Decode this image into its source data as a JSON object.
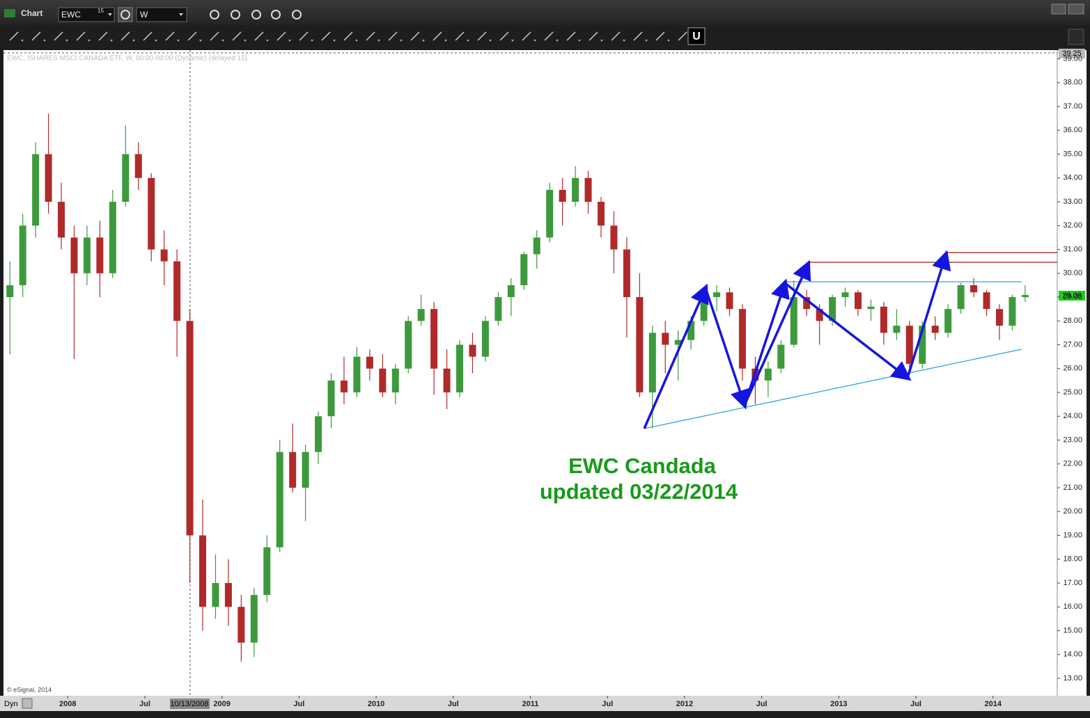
{
  "window": {
    "title": "Chart",
    "symbol": "EWC",
    "symbol_badge": "15",
    "interval": "W",
    "mode": "Dyn"
  },
  "chart_data": {
    "type": "candlestick",
    "title": "EWC, ISHARES MSCI CANADA ETF, W, 00:00-00:00 (Dynamic) (delayed 15)",
    "annotations": [
      "EWC Candada",
      "updated 03/22/2014"
    ],
    "watermark": "© eSignal, 2014",
    "cursor_label": "10/13/2008",
    "x": [
      "2007-08",
      "2007-09",
      "2007-10",
      "2007-11",
      "2007-12",
      "2008-01",
      "2008-02",
      "2008-03",
      "2008-04",
      "2008-05",
      "2008-06",
      "2008-07",
      "2008-08",
      "2008-09",
      "2008-10",
      "2008-11",
      "2008-12",
      "2009-01",
      "2009-02",
      "2009-03",
      "2009-04",
      "2009-05",
      "2009-06",
      "2009-07",
      "2009-08",
      "2009-09",
      "2009-10",
      "2009-11",
      "2009-12",
      "2010-01",
      "2010-02",
      "2010-03",
      "2010-04",
      "2010-05",
      "2010-06",
      "2010-07",
      "2010-08",
      "2010-09",
      "2010-10",
      "2010-11",
      "2010-12",
      "2011-01",
      "2011-02",
      "2011-03",
      "2011-04",
      "2011-05",
      "2011-06",
      "2011-07",
      "2011-08",
      "2011-09",
      "2011-10",
      "2011-11",
      "2011-12",
      "2012-01",
      "2012-02",
      "2012-03",
      "2012-04",
      "2012-05",
      "2012-06",
      "2012-07",
      "2012-08",
      "2012-09",
      "2012-10",
      "2012-11",
      "2012-12",
      "2013-01",
      "2013-02",
      "2013-03",
      "2013-04",
      "2013-05",
      "2013-06",
      "2013-07",
      "2013-08",
      "2013-09",
      "2013-10",
      "2013-11",
      "2013-12",
      "2014-01",
      "2014-02",
      "2014-03"
    ],
    "open": [
      29.0,
      29.5,
      32.0,
      35.0,
      33.0,
      31.5,
      30.0,
      31.5,
      30.0,
      33.0,
      35.0,
      34.0,
      31.0,
      30.5,
      28.0,
      19.0,
      16.0,
      17.0,
      16.0,
      14.5,
      16.5,
      18.5,
      22.5,
      21.0,
      22.5,
      24.0,
      25.5,
      25.0,
      26.5,
      26.0,
      25.0,
      26.0,
      28.0,
      28.5,
      26.0,
      25.0,
      27.0,
      26.5,
      28.0,
      29.0,
      29.5,
      30.8,
      31.5,
      33.5,
      33.0,
      34.0,
      33.0,
      32.0,
      31.0,
      29.0,
      25.0,
      27.5,
      27.0,
      27.2,
      28.0,
      29.0,
      29.2,
      28.5,
      26.0,
      25.5,
      26.0,
      27.0,
      29.0,
      28.5,
      28.0,
      29.0,
      29.2,
      28.5,
      28.6,
      27.5,
      27.8,
      26.2,
      27.8,
      27.5,
      28.5,
      29.5,
      29.2,
      28.5,
      27.8,
      29.0
    ],
    "high": [
      30.5,
      32.5,
      35.5,
      36.7,
      33.8,
      32.0,
      32.0,
      32.2,
      33.5,
      36.2,
      35.5,
      34.2,
      31.8,
      31.0,
      28.5,
      20.5,
      18.2,
      18.0,
      16.5,
      16.8,
      19.0,
      23.0,
      23.7,
      22.8,
      24.2,
      25.8,
      26.5,
      26.9,
      26.8,
      26.6,
      26.2,
      28.2,
      29.1,
      28.8,
      26.8,
      27.2,
      27.5,
      28.2,
      29.2,
      29.8,
      30.9,
      31.8,
      33.8,
      34.0,
      34.5,
      34.3,
      33.2,
      32.6,
      31.5,
      30.0,
      27.8,
      28.0,
      27.6,
      28.2,
      29.2,
      29.5,
      29.4,
      28.7,
      26.5,
      26.3,
      27.2,
      29.7,
      29.3,
      28.7,
      29.1,
      29.4,
      29.3,
      28.9,
      28.8,
      28.5,
      28.0,
      28.0,
      28.2,
      28.7,
      29.6,
      29.8,
      29.3,
      28.7,
      29.1,
      29.5
    ],
    "low": [
      26.6,
      29.0,
      31.5,
      32.5,
      31.0,
      26.4,
      29.5,
      29.0,
      29.8,
      32.8,
      33.5,
      30.5,
      29.5,
      26.5,
      17.0,
      15.0,
      15.5,
      15.2,
      13.7,
      13.9,
      16.2,
      18.3,
      20.8,
      19.6,
      22.0,
      23.5,
      24.5,
      24.8,
      25.5,
      24.8,
      24.5,
      25.8,
      27.8,
      24.9,
      24.3,
      24.8,
      25.8,
      26.3,
      27.8,
      28.2,
      29.3,
      30.2,
      31.3,
      32.0,
      32.8,
      32.5,
      31.5,
      30.0,
      27.3,
      24.8,
      23.5,
      25.8,
      25.5,
      26.8,
      27.8,
      28.4,
      28.2,
      25.5,
      24.5,
      24.8,
      25.8,
      26.9,
      28.2,
      27.0,
      27.8,
      28.6,
      28.2,
      28.0,
      27.0,
      27.2,
      25.8,
      26.0,
      27.2,
      27.3,
      28.3,
      29.0,
      28.2,
      27.2,
      27.6,
      28.8
    ],
    "close": [
      29.5,
      32.0,
      35.0,
      33.0,
      31.5,
      30.0,
      31.5,
      30.0,
      33.0,
      35.0,
      34.0,
      31.0,
      30.5,
      28.0,
      19.0,
      16.0,
      17.0,
      16.0,
      14.5,
      16.5,
      18.5,
      22.5,
      21.0,
      22.5,
      24.0,
      25.5,
      25.0,
      26.5,
      26.0,
      25.0,
      26.0,
      28.0,
      28.5,
      26.0,
      25.0,
      27.0,
      26.5,
      28.0,
      29.0,
      29.5,
      30.8,
      31.5,
      33.5,
      33.0,
      34.0,
      33.0,
      32.0,
      31.0,
      29.0,
      25.0,
      27.5,
      27.0,
      27.2,
      28.0,
      29.0,
      29.2,
      28.5,
      26.0,
      25.5,
      26.0,
      27.0,
      29.0,
      28.5,
      28.0,
      29.0,
      29.2,
      28.5,
      28.6,
      27.5,
      27.8,
      26.2,
      27.8,
      27.5,
      28.5,
      29.5,
      29.2,
      28.5,
      27.8,
      29.0,
      29.09
    ],
    "up_color": "#3c9a3c",
    "down_color": "#b02a2a",
    "xlim": [
      "2007-08",
      "2014-06"
    ],
    "xticks": [
      {
        "value": "2008-01",
        "label": "2008"
      },
      {
        "value": "2008-07",
        "label": "Jul"
      },
      {
        "value": "2009-01",
        "label": "2009"
      },
      {
        "value": "2009-07",
        "label": "Jul"
      },
      {
        "value": "2010-01",
        "label": "2010"
      },
      {
        "value": "2010-07",
        "label": "Jul"
      },
      {
        "value": "2011-01",
        "label": "2011"
      },
      {
        "value": "2011-07",
        "label": "Jul"
      },
      {
        "value": "2012-01",
        "label": "2012"
      },
      {
        "value": "2012-07",
        "label": "Jul"
      },
      {
        "value": "2013-01",
        "label": "2013"
      },
      {
        "value": "2013-07",
        "label": "Jul"
      },
      {
        "value": "2014-01",
        "label": "2014"
      }
    ],
    "ylim": [
      12.27,
      39.25
    ],
    "yticks": [
      {
        "value": 13,
        "label": "13.00"
      },
      {
        "value": 14,
        "label": "14.00"
      },
      {
        "value": 15,
        "label": "15.00"
      },
      {
        "value": 16,
        "label": "16.00"
      },
      {
        "value": 17,
        "label": "17.00"
      },
      {
        "value": 18,
        "label": "18.00"
      },
      {
        "value": 19,
        "label": "19.00"
      },
      {
        "value": 20,
        "label": "20.00"
      },
      {
        "value": 21,
        "label": "21.00"
      },
      {
        "value": 22,
        "label": "22.00"
      },
      {
        "value": 23,
        "label": "23.00"
      },
      {
        "value": 24,
        "label": "24.00"
      },
      {
        "value": 25,
        "label": "25.00"
      },
      {
        "value": 26,
        "label": "26.00"
      },
      {
        "value": 27,
        "label": "27.00"
      },
      {
        "value": 28,
        "label": "28.00"
      },
      {
        "value": 29,
        "label": "29.00"
      },
      {
        "value": 30,
        "label": "30.00"
      },
      {
        "value": 31,
        "label": "31.00"
      },
      {
        "value": 32,
        "label": "32.00"
      },
      {
        "value": 33,
        "label": "33.00"
      },
      {
        "value": 34,
        "label": "34.00"
      },
      {
        "value": 35,
        "label": "35.00"
      },
      {
        "value": 36,
        "label": "36.00"
      },
      {
        "value": 37,
        "label": "37.00"
      },
      {
        "value": 38,
        "label": "38.00"
      },
      {
        "value": 39,
        "label": "39.00"
      }
    ],
    "grid": false
  }
}
